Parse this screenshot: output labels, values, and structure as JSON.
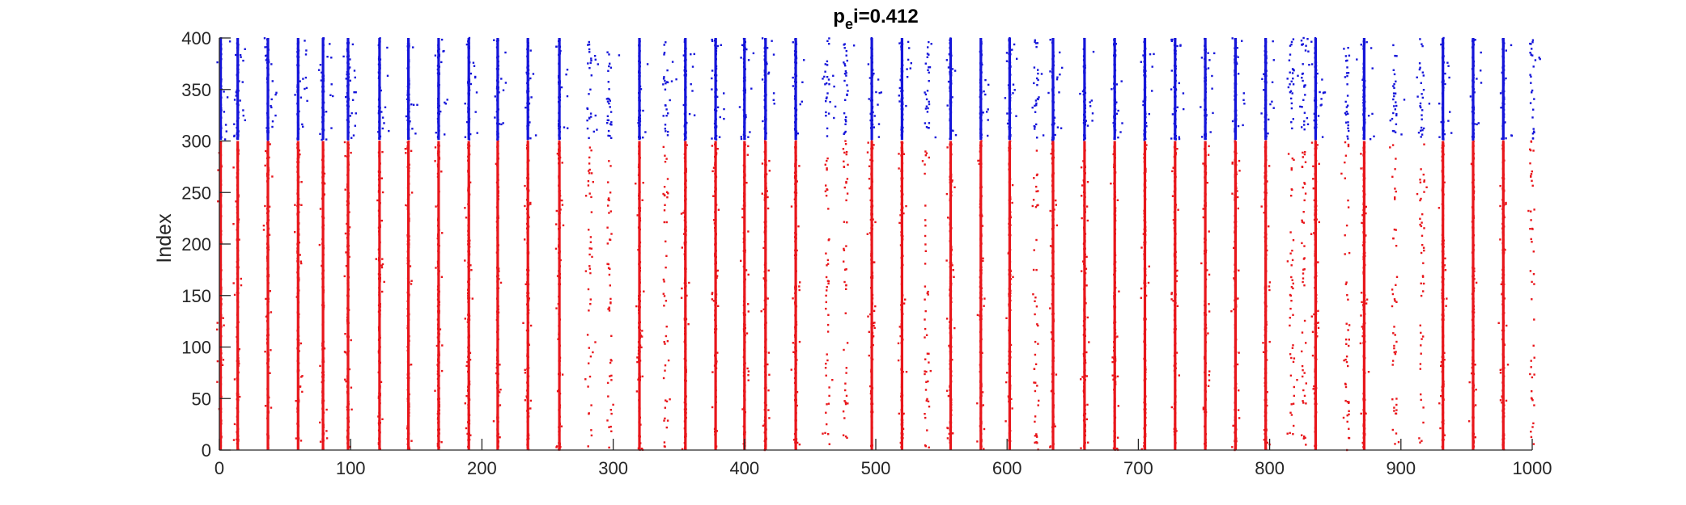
{
  "chart_data": {
    "type": "scatter",
    "title_main": "p",
    "title_sub": "e",
    "title_rest": "i=0.412",
    "xlabel": "",
    "ylabel": "Index",
    "xlim": [
      0,
      1000
    ],
    "ylim": [
      0,
      400
    ],
    "xticks": [
      "0",
      "100",
      "200",
      "300",
      "400",
      "500",
      "600",
      "700",
      "800",
      "900",
      "1000"
    ],
    "yticks": [
      "0",
      "50",
      "100",
      "150",
      "200",
      "250",
      "300",
      "350",
      "400"
    ],
    "grid": false,
    "legend": "none",
    "colors": {
      "excitatory": "#e8161b",
      "inhibitory": "#1515d9",
      "axis": "#262626"
    },
    "populations": [
      {
        "index_range": [
          0,
          300
        ],
        "color": "#e8161b"
      },
      {
        "index_range": [
          301,
          400
        ],
        "color": "#1515d9"
      }
    ],
    "burst_times": [
      1,
      14,
      37,
      60,
      79,
      98,
      122,
      144,
      167,
      190,
      212,
      235,
      259,
      282,
      297,
      320,
      340,
      355,
      378,
      400,
      416,
      439,
      463,
      477,
      497,
      520,
      539,
      557,
      580,
      602,
      622,
      635,
      659,
      682,
      705,
      728,
      751,
      774,
      797,
      817,
      826,
      835,
      859,
      872,
      895,
      916,
      932,
      955,
      978,
      1000
    ]
  }
}
